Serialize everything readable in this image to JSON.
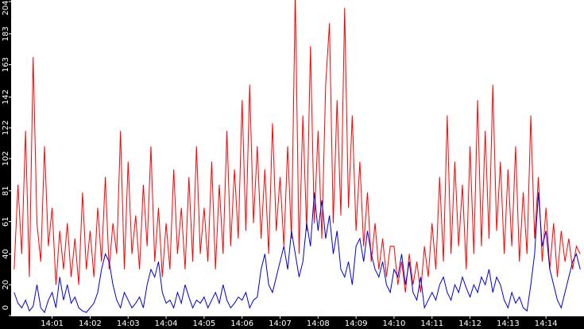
{
  "chart_data": {
    "type": "line",
    "x": [
      0,
      0.1,
      0.2,
      0.3,
      0.4,
      0.5,
      0.6,
      0.7,
      0.8,
      0.9,
      1,
      1.1,
      1.2,
      1.3,
      1.4,
      1.5,
      1.6,
      1.7,
      1.8,
      1.9,
      2,
      2.1,
      2.2,
      2.3,
      2.4,
      2.5,
      2.6,
      2.7,
      2.8,
      2.9,
      3,
      3.1,
      3.2,
      3.3,
      3.4,
      3.5,
      3.6,
      3.7,
      3.8,
      3.9,
      4,
      4.1,
      4.2,
      4.3,
      4.4,
      4.5,
      4.6,
      4.7,
      4.8,
      4.9,
      5,
      5.1,
      5.2,
      5.3,
      5.4,
      5.5,
      5.6,
      5.7,
      5.8,
      5.9,
      6,
      6.1,
      6.2,
      6.3,
      6.4,
      6.5,
      6.6,
      6.7,
      6.8,
      6.9,
      7,
      7.1,
      7.2,
      7.3,
      7.4,
      7.5,
      7.6,
      7.7,
      7.8,
      7.9,
      8,
      8.1,
      8.2,
      8.3,
      8.4,
      8.5,
      8.6,
      8.7,
      8.8,
      8.9,
      9,
      9.1,
      9.2,
      9.3,
      9.4,
      9.5,
      9.6,
      9.7,
      9.8,
      9.9,
      10,
      10.1,
      10.2,
      10.3,
      10.4,
      10.5,
      10.6,
      10.7,
      10.8,
      10.9,
      11,
      11.1,
      11.2,
      11.3,
      11.4,
      11.5,
      11.6,
      11.7,
      11.8,
      11.9,
      12,
      12.1,
      12.2,
      12.3,
      12.4,
      12.5,
      12.6,
      12.7,
      12.8,
      12.9,
      13,
      13.1,
      13.2,
      13.3,
      13.4,
      13.5,
      13.6,
      13.7,
      13.8,
      13.9,
      14,
      14.1,
      14.2,
      14.3,
      14.4,
      14.5,
      14.6,
      14.7,
      14.8,
      14.9
    ],
    "series": [
      {
        "color": "#ff0000",
        "values": [
          30,
          85,
          40,
          120,
          25,
          168,
          60,
          35,
          110,
          45,
          70,
          20,
          55,
          30,
          60,
          25,
          50,
          20,
          80,
          30,
          55,
          25,
          70,
          35,
          90,
          30,
          60,
          40,
          120,
          30,
          100,
          40,
          65,
          30,
          85,
          45,
          110,
          35,
          70,
          25,
          60,
          30,
          95,
          40,
          70,
          30,
          90,
          35,
          110,
          40,
          70,
          35,
          100,
          30,
          85,
          40,
          120,
          45,
          95,
          50,
          140,
          55,
          150,
          60,
          110,
          50,
          95,
          40,
          125,
          55,
          90,
          45,
          110,
          50,
          210,
          40,
          130,
          55,
          175,
          60,
          120,
          50,
          150,
          190,
          60,
          140,
          65,
          200,
          70,
          130,
          55,
          100,
          45,
          80,
          35,
          60,
          30,
          50,
          25,
          45,
          45,
          20,
          35,
          15,
          40,
          20,
          35,
          15,
          45,
          25,
          60,
          30,
          90,
          35,
          130,
          40,
          100,
          45,
          85,
          30,
          110,
          40,
          140,
          45,
          120,
          50,
          150,
          55,
          100,
          40,
          95,
          45,
          110,
          35,
          80,
          40,
          130,
          50,
          90,
          35,
          70,
          30,
          60,
          25,
          55,
          35,
          50,
          30,
          45,
          40
        ]
      },
      {
        "color": "#0000cc",
        "values": [
          15,
          8,
          5,
          10,
          3,
          6,
          20,
          5,
          2,
          10,
          15,
          5,
          25,
          10,
          20,
          8,
          12,
          5,
          3,
          2,
          5,
          8,
          15,
          30,
          40,
          35,
          20,
          10,
          5,
          15,
          10,
          5,
          8,
          12,
          5,
          20,
          30,
          25,
          35,
          15,
          8,
          10,
          5,
          15,
          8,
          20,
          12,
          5,
          10,
          8,
          12,
          5,
          10,
          15,
          8,
          20,
          10,
          5,
          8,
          12,
          10,
          15,
          5,
          10,
          12,
          30,
          40,
          20,
          15,
          25,
          35,
          45,
          30,
          55,
          40,
          25,
          35,
          60,
          45,
          80,
          55,
          75,
          50,
          65,
          40,
          55,
          30,
          25,
          35,
          20,
          45,
          50,
          35,
          55,
          40,
          30,
          25,
          35,
          20,
          15,
          30,
          25,
          40,
          20,
          35,
          15,
          10,
          25,
          5,
          10,
          15,
          10,
          20,
          25,
          15,
          10,
          20,
          15,
          25,
          18,
          12,
          20,
          15,
          25,
          20,
          30,
          15,
          25,
          20,
          10,
          5,
          15,
          8,
          12,
          5,
          3,
          20,
          40,
          80,
          45,
          55,
          30,
          20,
          10,
          5,
          15,
          25,
          35,
          40,
          30
        ]
      }
    ],
    "xlim": [
      -0.08,
      15.0
    ],
    "xticks": [
      {
        "value": 1,
        "label": "14:01"
      },
      {
        "value": 2,
        "label": "14:02"
      },
      {
        "value": 3,
        "label": "14:03"
      },
      {
        "value": 4,
        "label": "14:04"
      },
      {
        "value": 5,
        "label": "14:05"
      },
      {
        "value": 6,
        "label": "14:06"
      },
      {
        "value": 7,
        "label": "14:07"
      },
      {
        "value": 8,
        "label": "14:08"
      },
      {
        "value": 9,
        "label": "14:09"
      },
      {
        "value": 10,
        "label": "14:10"
      },
      {
        "value": 11,
        "label": "14:11"
      },
      {
        "value": 12,
        "label": "14:12"
      },
      {
        "value": 13,
        "label": "14:13"
      },
      {
        "value": 14,
        "label": "14:14"
      }
    ],
    "ylim": [
      0,
      204
    ],
    "yticks": [
      0,
      20,
      40,
      61,
      81,
      102,
      122,
      142,
      163,
      183,
      204
    ]
  }
}
